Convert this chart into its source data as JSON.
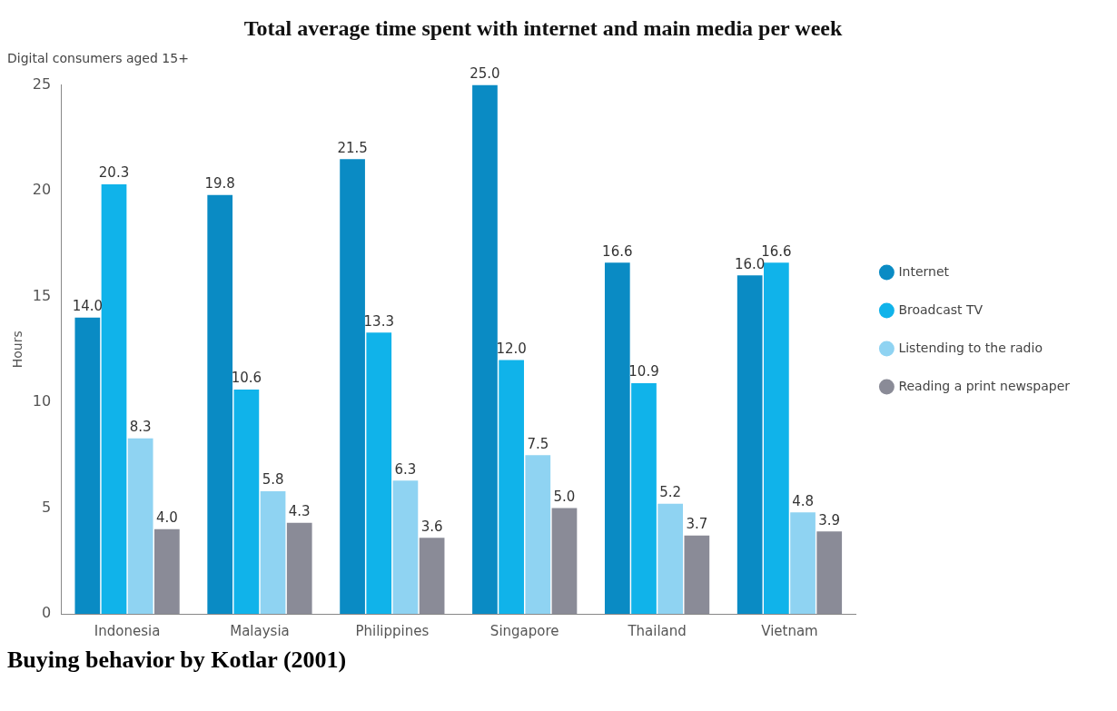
{
  "chart_data": {
    "type": "bar",
    "title": "Total average time spent with internet and main media per week",
    "subtitle": "Digital consumers aged 15+",
    "ylabel": "Hours",
    "categories": [
      "Indonesia",
      "Malaysia",
      "Philippines",
      "Singapore",
      "Thailand",
      "Vietnam"
    ],
    "series": [
      {
        "name": "Internet",
        "color": "#0a8bc4",
        "values": [
          14.0,
          19.8,
          21.5,
          25.0,
          16.6,
          16.0
        ],
        "value_labels": [
          "14.0",
          "19.8",
          "21.5",
          "25.0",
          "16.6",
          "16.0"
        ]
      },
      {
        "name": "Broadcast TV",
        "color": "#10b3ea",
        "values": [
          20.3,
          10.6,
          13.3,
          12.0,
          10.9,
          16.6
        ],
        "value_labels": [
          "20.3",
          "10.6",
          "13.3",
          "12.0",
          "10.9",
          "16.6"
        ]
      },
      {
        "name": "Listending to the radio",
        "color": "#8fd3f2",
        "values": [
          8.3,
          5.8,
          6.3,
          7.5,
          5.2,
          4.8
        ],
        "value_labels": [
          "8.3",
          "5.8",
          "6.3",
          "7.5",
          "5.2",
          "4.8"
        ]
      },
      {
        "name": "Reading a print newspaper",
        "color": "#8a8b97",
        "values": [
          4.0,
          4.3,
          3.6,
          5.0,
          3.7,
          3.9
        ],
        "value_labels": [
          "4.0",
          "4.3",
          "3.6",
          "5.0",
          "3.7",
          "3.9"
        ]
      }
    ],
    "ylim": [
      0,
      25
    ],
    "yticks": [
      0,
      5,
      10,
      15,
      20,
      25
    ],
    "grid": false,
    "legend": "right",
    "annotations": [
      "Buying behavior by Kotlar (2001)"
    ]
  }
}
